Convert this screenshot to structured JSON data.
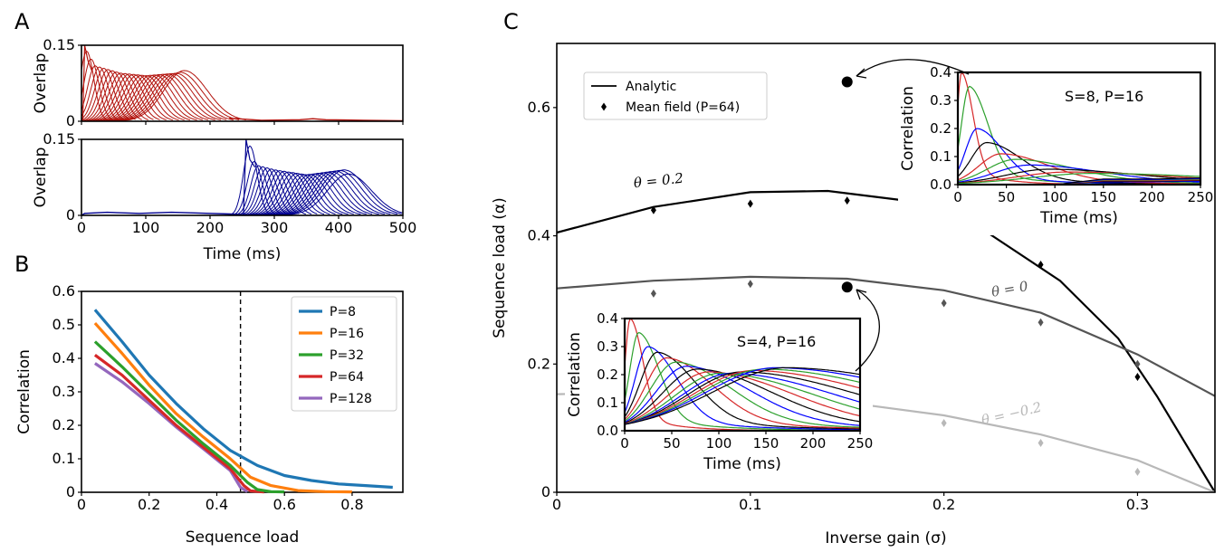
{
  "panels": {
    "a": "A",
    "b": "B",
    "c": "C"
  },
  "colors": {
    "a_top": "#b2120c",
    "a_bottom": "#000090",
    "p8": "#1f77b4",
    "p16": "#ff7f0e",
    "p32": "#2ca02c",
    "p64": "#d62728",
    "p128": "#9467bd",
    "theta_pos": "#000000",
    "theta_zero": "#555555",
    "theta_neg": "#b8b8b8",
    "inset_cycle": [
      "#d62728",
      "#2ca02c",
      "#0000ff",
      "#000000"
    ]
  },
  "chart_data": [
    {
      "panel": "A-top",
      "type": "line",
      "ylabel": "Overlap",
      "xlim": [
        0,
        500
      ],
      "ylim": [
        0,
        0.15
      ],
      "yticks": [
        "0",
        "0.15"
      ],
      "n_curves": 24,
      "envelope": [
        [
          3,
          0.15
        ],
        [
          20,
          0.11
        ],
        [
          60,
          0.095
        ],
        [
          100,
          0.09
        ],
        [
          150,
          0.095
        ],
        [
          160,
          0.1
        ],
        [
          190,
          0.08
        ],
        [
          230,
          0.02
        ],
        [
          260,
          0.004
        ],
        [
          300,
          0.002
        ],
        [
          400,
          0.003
        ],
        [
          500,
          0.001
        ]
      ]
    },
    {
      "panel": "A-bottom",
      "type": "line",
      "ylabel": "Overlap",
      "xlabel": "Time (ms)",
      "xlim": [
        0,
        500
      ],
      "ylim": [
        0,
        0.15
      ],
      "xticks": [
        "0",
        "100",
        "200",
        "300",
        "400",
        "500"
      ],
      "yticks": [
        "0",
        "0.15"
      ],
      "n_curves": 24,
      "envelope": [
        [
          0,
          0.004
        ],
        [
          250,
          0.004
        ],
        [
          257,
          0.16
        ],
        [
          270,
          0.1
        ],
        [
          300,
          0.09
        ],
        [
          350,
          0.08
        ],
        [
          410,
          0.09
        ],
        [
          440,
          0.04
        ],
        [
          465,
          0.003
        ],
        [
          500,
          0.001
        ]
      ]
    },
    {
      "panel": "B",
      "type": "line",
      "xlabel": "Sequence load",
      "ylabel": "Correlation",
      "xlim": [
        0,
        0.95
      ],
      "ylim": [
        0,
        0.6
      ],
      "xticks": [
        "0",
        "0.2",
        "0.4",
        "0.6",
        "0.8"
      ],
      "yticks": [
        "0",
        "0.1",
        "0.2",
        "0.3",
        "0.4",
        "0.5",
        "0.6"
      ],
      "legend": "upper right",
      "vline": 0.47,
      "series": [
        {
          "name": "P=8",
          "color_key": "p8",
          "points": [
            [
              0.04,
              0.545
            ],
            [
              0.12,
              0.45
            ],
            [
              0.2,
              0.35
            ],
            [
              0.28,
              0.265
            ],
            [
              0.36,
              0.19
            ],
            [
              0.44,
              0.125
            ],
            [
              0.52,
              0.08
            ],
            [
              0.6,
              0.05
            ],
            [
              0.68,
              0.035
            ],
            [
              0.76,
              0.025
            ],
            [
              0.84,
              0.02
            ],
            [
              0.92,
              0.015
            ]
          ]
        },
        {
          "name": "P=16",
          "color_key": "p16",
          "points": [
            [
              0.04,
              0.505
            ],
            [
              0.12,
              0.415
            ],
            [
              0.2,
              0.32
            ],
            [
              0.28,
              0.235
            ],
            [
              0.36,
              0.165
            ],
            [
              0.44,
              0.1
            ],
            [
              0.5,
              0.045
            ],
            [
              0.56,
              0.02
            ],
            [
              0.64,
              0.005
            ],
            [
              0.72,
              0.002
            ],
            [
              0.8,
              0.001
            ]
          ]
        },
        {
          "name": "P=32",
          "color_key": "p32",
          "points": [
            [
              0.04,
              0.45
            ],
            [
              0.12,
              0.375
            ],
            [
              0.2,
              0.295
            ],
            [
              0.28,
              0.215
            ],
            [
              0.36,
              0.145
            ],
            [
              0.44,
              0.08
            ],
            [
              0.49,
              0.03
            ],
            [
              0.52,
              0.008
            ],
            [
              0.56,
              0.002
            ],
            [
              0.6,
              0.001
            ]
          ]
        },
        {
          "name": "P=64",
          "color_key": "p64",
          "points": [
            [
              0.04,
              0.41
            ],
            [
              0.12,
              0.35
            ],
            [
              0.2,
              0.275
            ],
            [
              0.28,
              0.2
            ],
            [
              0.36,
              0.135
            ],
            [
              0.44,
              0.07
            ],
            [
              0.48,
              0.02
            ],
            [
              0.5,
              0.004
            ],
            [
              0.54,
              0.001
            ]
          ]
        },
        {
          "name": "P=128",
          "color_key": "p128",
          "points": [
            [
              0.04,
              0.385
            ],
            [
              0.12,
              0.33
            ],
            [
              0.2,
              0.265
            ],
            [
              0.28,
              0.195
            ],
            [
              0.36,
              0.13
            ],
            [
              0.44,
              0.065
            ],
            [
              0.47,
              0.015
            ],
            [
              0.49,
              0.002
            ]
          ]
        }
      ]
    },
    {
      "panel": "C",
      "type": "line",
      "xlabel": "Inverse gain (σ)",
      "ylabel": "Sequence load (α)",
      "xlim": [
        0,
        0.34
      ],
      "ylim": [
        0,
        0.7
      ],
      "xticks": [
        "0",
        "0.1",
        "0.2",
        "0.3"
      ],
      "yticks": [
        "0",
        "0.2",
        "0.4",
        "0.6"
      ],
      "legend": {
        "placement": "upper left",
        "entries": [
          "Analytic",
          "Mean field (P=64)"
        ]
      },
      "analytic": [
        {
          "label": "θ = 0.2",
          "color_key": "theta_pos",
          "points": [
            [
              0,
              0.405
            ],
            [
              0.05,
              0.445
            ],
            [
              0.1,
              0.468
            ],
            [
              0.14,
              0.47
            ],
            [
              0.18,
              0.455
            ],
            [
              0.22,
              0.41
            ],
            [
              0.26,
              0.33
            ],
            [
              0.29,
              0.24
            ],
            [
              0.31,
              0.15
            ],
            [
              0.33,
              0.05
            ],
            [
              0.34,
              0.0
            ]
          ]
        },
        {
          "label": "θ = 0",
          "color_key": "theta_zero",
          "points": [
            [
              0,
              0.318
            ],
            [
              0.05,
              0.33
            ],
            [
              0.1,
              0.336
            ],
            [
              0.15,
              0.333
            ],
            [
              0.2,
              0.315
            ],
            [
              0.25,
              0.28
            ],
            [
              0.3,
              0.215
            ],
            [
              0.34,
              0.15
            ]
          ]
        },
        {
          "label": "θ = −0.2",
          "color_key": "theta_neg",
          "points": [
            [
              0,
              0.153
            ],
            [
              0.05,
              0.156
            ],
            [
              0.1,
              0.152
            ],
            [
              0.15,
              0.14
            ],
            [
              0.2,
              0.12
            ],
            [
              0.25,
              0.09
            ],
            [
              0.3,
              0.05
            ],
            [
              0.34,
              0.0
            ]
          ]
        }
      ],
      "mean_field": [
        {
          "theta": "0.2",
          "color_key": "theta_pos",
          "points": [
            [
              0.05,
              0.44
            ],
            [
              0.1,
              0.45
            ],
            [
              0.15,
              0.455
            ],
            [
              0.2,
              0.43
            ],
            [
              0.25,
              0.355
            ],
            [
              0.3,
              0.18
            ]
          ]
        },
        {
          "theta": "0",
          "color_key": "theta_zero",
          "points": [
            [
              0.05,
              0.31
            ],
            [
              0.1,
              0.325
            ],
            [
              0.15,
              0.32
            ],
            [
              0.2,
              0.295
            ],
            [
              0.25,
              0.265
            ],
            [
              0.3,
              0.2
            ]
          ]
        },
        {
          "theta": "-0.2",
          "color_key": "theta_neg",
          "points": [
            [
              0.2,
              0.108
            ],
            [
              0.25,
              0.077
            ],
            [
              0.3,
              0.032
            ]
          ]
        }
      ],
      "highlight_points": [
        [
          0.15,
          0.64
        ],
        [
          0.15,
          0.32
        ]
      ]
    },
    {
      "panel": "C-inset-top",
      "type": "line",
      "title": "S=8, P=16",
      "xlabel": "Time (ms)",
      "ylabel": "Correlation",
      "xlim": [
        0,
        250
      ],
      "ylim": [
        0,
        0.4
      ],
      "xticks": [
        "0",
        "50",
        "100",
        "150",
        "200",
        "250"
      ],
      "yticks": [
        "0.0",
        "0.1",
        "0.2",
        "0.3",
        "0.4"
      ],
      "n_curves": 16,
      "peaks": [
        [
          4,
          0.4
        ],
        [
          12,
          0.35
        ],
        [
          20,
          0.2
        ],
        [
          30,
          0.15
        ],
        [
          45,
          0.11
        ],
        [
          60,
          0.09
        ],
        [
          75,
          0.07
        ],
        [
          95,
          0.055
        ],
        [
          115,
          0.045
        ],
        [
          140,
          0.04
        ]
      ]
    },
    {
      "panel": "C-inset-bottom",
      "type": "line",
      "title": "S=4, P=16",
      "xlabel": "Time (ms)",
      "ylabel": "Correlation",
      "xlim": [
        0,
        250
      ],
      "ylim": [
        0,
        0.4
      ],
      "xticks": [
        "0",
        "50",
        "100",
        "150",
        "200",
        "250"
      ],
      "yticks": [
        "0.0",
        "0.1",
        "0.2",
        "0.3",
        "0.4"
      ],
      "n_curves": 16,
      "peaks": [
        [
          6,
          0.4
        ],
        [
          15,
          0.35
        ],
        [
          25,
          0.3
        ],
        [
          35,
          0.28
        ],
        [
          45,
          0.26
        ],
        [
          55,
          0.245
        ],
        [
          66,
          0.23
        ],
        [
          78,
          0.22
        ],
        [
          90,
          0.21
        ],
        [
          102,
          0.205
        ],
        [
          114,
          0.205
        ],
        [
          126,
          0.21
        ],
        [
          138,
          0.215
        ],
        [
          150,
          0.22
        ],
        [
          162,
          0.225
        ],
        [
          174,
          0.225
        ]
      ]
    }
  ]
}
